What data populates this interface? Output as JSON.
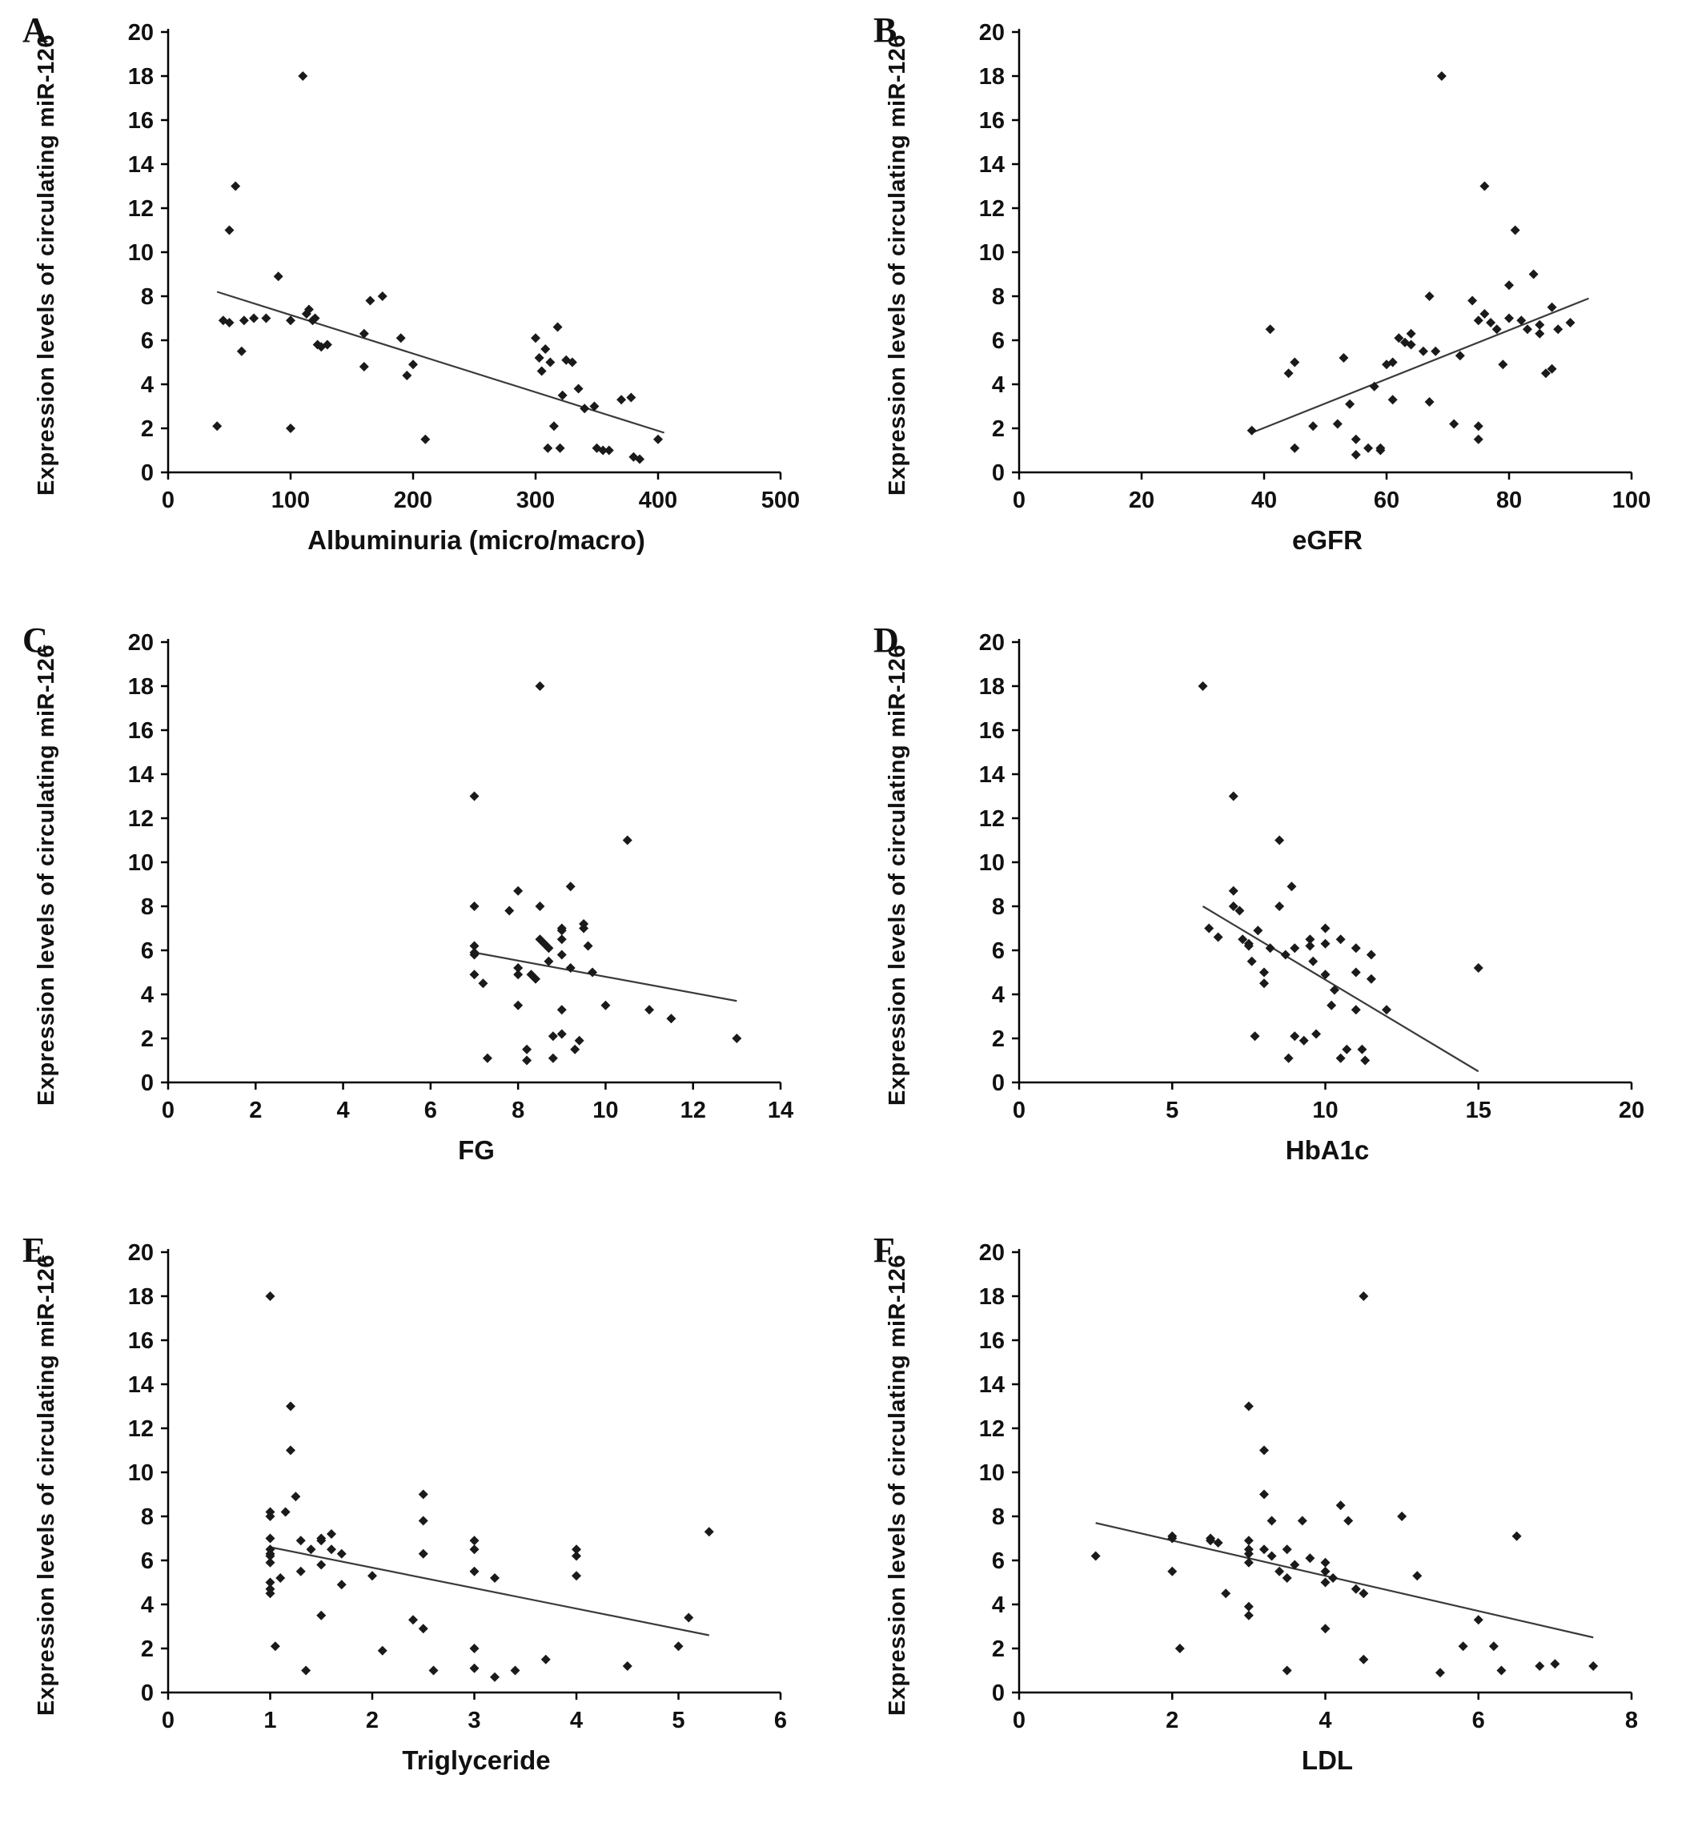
{
  "figure": {
    "background": "#ffffff",
    "point_color": "#1a1a1a",
    "line_color": "#3a3a3a",
    "axis_color": "#000000"
  },
  "chart_data": [
    {
      "type": "scatter",
      "panel": "A",
      "title": "",
      "xlabel": "Albuminuria (micro/macro)",
      "ylabel": "Expression levels of circulating miR-126",
      "xlim": [
        0,
        500
      ],
      "ylim": [
        0,
        20
      ],
      "xticks": [
        0,
        100,
        200,
        300,
        400,
        500
      ],
      "yticks": [
        0,
        2,
        4,
        6,
        8,
        10,
        12,
        14,
        16,
        18,
        20
      ],
      "points": [
        [
          40,
          2.1
        ],
        [
          45,
          6.9
        ],
        [
          50,
          6.8
        ],
        [
          50,
          11
        ],
        [
          55,
          13
        ],
        [
          60,
          5.5
        ],
        [
          62,
          6.9
        ],
        [
          70,
          7
        ],
        [
          80,
          7
        ],
        [
          90,
          8.9
        ],
        [
          100,
          2
        ],
        [
          100,
          6.9
        ],
        [
          110,
          18
        ],
        [
          113,
          7.2
        ],
        [
          115,
          7.4
        ],
        [
          118,
          6.9
        ],
        [
          120,
          7
        ],
        [
          122,
          5.8
        ],
        [
          125,
          5.7
        ],
        [
          130,
          5.8
        ],
        [
          160,
          6.3
        ],
        [
          160,
          4.8
        ],
        [
          165,
          7.8
        ],
        [
          175,
          8
        ],
        [
          190,
          6.1
        ],
        [
          195,
          4.4
        ],
        [
          200,
          4.9
        ],
        [
          210,
          1.5
        ],
        [
          300,
          6.1
        ],
        [
          303,
          5.2
        ],
        [
          305,
          4.6
        ],
        [
          308,
          5.6
        ],
        [
          310,
          1.1
        ],
        [
          312,
          5
        ],
        [
          315,
          2.1
        ],
        [
          318,
          6.6
        ],
        [
          320,
          1.1
        ],
        [
          322,
          3.5
        ],
        [
          325,
          5.1
        ],
        [
          330,
          5
        ],
        [
          335,
          3.8
        ],
        [
          340,
          2.9
        ],
        [
          348,
          3
        ],
        [
          350,
          1.1
        ],
        [
          355,
          1
        ],
        [
          360,
          1
        ],
        [
          370,
          3.3
        ],
        [
          378,
          3.4
        ],
        [
          380,
          0.7
        ],
        [
          385,
          0.6
        ],
        [
          400,
          1.5
        ]
      ],
      "trend": [
        [
          40,
          8.2
        ],
        [
          405,
          1.8
        ]
      ]
    },
    {
      "type": "scatter",
      "panel": "B",
      "title": "",
      "xlabel": "eGFR",
      "ylabel": "Expression levels of circulating miR-126",
      "xlim": [
        0,
        100
      ],
      "ylim": [
        0,
        20
      ],
      "xticks": [
        0,
        20,
        40,
        60,
        80,
        100
      ],
      "yticks": [
        0,
        2,
        4,
        6,
        8,
        10,
        12,
        14,
        16,
        18,
        20
      ],
      "points": [
        [
          38,
          1.9
        ],
        [
          41,
          6.5
        ],
        [
          44,
          4.5
        ],
        [
          45,
          5
        ],
        [
          45,
          1.1
        ],
        [
          48,
          2.1
        ],
        [
          52,
          2.2
        ],
        [
          53,
          5.2
        ],
        [
          54,
          3.1
        ],
        [
          55,
          0.8
        ],
        [
          55,
          1.5
        ],
        [
          57,
          1.1
        ],
        [
          58,
          3.9
        ],
        [
          59,
          1
        ],
        [
          59,
          1.1
        ],
        [
          60,
          4.9
        ],
        [
          61,
          5
        ],
        [
          61,
          3.3
        ],
        [
          62,
          6.1
        ],
        [
          63,
          5.9
        ],
        [
          64,
          5.8
        ],
        [
          64,
          6.3
        ],
        [
          66,
          5.5
        ],
        [
          67,
          8
        ],
        [
          67,
          3.2
        ],
        [
          68,
          5.5
        ],
        [
          69,
          18
        ],
        [
          71,
          2.2
        ],
        [
          72,
          5.3
        ],
        [
          74,
          7.8
        ],
        [
          75,
          6.9
        ],
        [
          75,
          2.1
        ],
        [
          75,
          1.5
        ],
        [
          76,
          13
        ],
        [
          76,
          7.2
        ],
        [
          77,
          6.8
        ],
        [
          78,
          6.5
        ],
        [
          79,
          4.9
        ],
        [
          80,
          8.5
        ],
        [
          80,
          7
        ],
        [
          81,
          11
        ],
        [
          82,
          6.9
        ],
        [
          83,
          6.5
        ],
        [
          84,
          9
        ],
        [
          85,
          6.3
        ],
        [
          85,
          6.7
        ],
        [
          86,
          4.5
        ],
        [
          87,
          4.7
        ],
        [
          87,
          7.5
        ],
        [
          88,
          6.5
        ],
        [
          90,
          6.8
        ]
      ],
      "trend": [
        [
          38,
          1.8
        ],
        [
          93,
          7.9
        ]
      ]
    },
    {
      "type": "scatter",
      "panel": "C",
      "title": "",
      "xlabel": "FG",
      "ylabel": "Expression levels of circulating miR-126",
      "xlim": [
        0,
        14
      ],
      "ylim": [
        0,
        20
      ],
      "xticks": [
        0,
        2,
        4,
        6,
        8,
        10,
        12,
        14
      ],
      "yticks": [
        0,
        2,
        4,
        6,
        8,
        10,
        12,
        14,
        16,
        18,
        20
      ],
      "points": [
        [
          7,
          13
        ],
        [
          7,
          8
        ],
        [
          7,
          6.2
        ],
        [
          7,
          5.9
        ],
        [
          7,
          5.8
        ],
        [
          7,
          4.9
        ],
        [
          7.2,
          4.5
        ],
        [
          7.3,
          1.1
        ],
        [
          7.8,
          7.8
        ],
        [
          8,
          8.7
        ],
        [
          8,
          5.2
        ],
        [
          8,
          4.9
        ],
        [
          8,
          3.5
        ],
        [
          8.2,
          1.5
        ],
        [
          8.2,
          1
        ],
        [
          8.3,
          4.9
        ],
        [
          8.4,
          4.7
        ],
        [
          8.5,
          18
        ],
        [
          8.5,
          8
        ],
        [
          8.5,
          6.5
        ],
        [
          8.6,
          6.3
        ],
        [
          8.7,
          6.1
        ],
        [
          8.7,
          5.5
        ],
        [
          8.8,
          2.1
        ],
        [
          8.8,
          1.1
        ],
        [
          9,
          7
        ],
        [
          9,
          6.9
        ],
        [
          9,
          6.5
        ],
        [
          9,
          5.8
        ],
        [
          9,
          3.3
        ],
        [
          9,
          2.2
        ],
        [
          9.2,
          8.9
        ],
        [
          9.2,
          5.2
        ],
        [
          9.3,
          1.5
        ],
        [
          9.4,
          1.9
        ],
        [
          9.5,
          7
        ],
        [
          9.5,
          7.2
        ],
        [
          9.6,
          6.2
        ],
        [
          9.7,
          5
        ],
        [
          10,
          3.5
        ],
        [
          10.5,
          11
        ],
        [
          11,
          3.3
        ],
        [
          11.5,
          2.9
        ],
        [
          13,
          2
        ]
      ],
      "trend": [
        [
          7,
          5.9
        ],
        [
          13,
          3.7
        ]
      ]
    },
    {
      "type": "scatter",
      "panel": "D",
      "title": "",
      "xlabel": "HbA1c",
      "ylabel": "Expression levels of circulating miR-126",
      "xlim": [
        0,
        20
      ],
      "ylim": [
        0,
        20
      ],
      "xticks": [
        0,
        5,
        10,
        15,
        20
      ],
      "yticks": [
        0,
        2,
        4,
        6,
        8,
        10,
        12,
        14,
        16,
        18,
        20
      ],
      "points": [
        [
          6,
          18
        ],
        [
          6.2,
          7
        ],
        [
          6.5,
          6.6
        ],
        [
          7,
          13
        ],
        [
          7,
          8.7
        ],
        [
          7,
          8
        ],
        [
          7.2,
          7.8
        ],
        [
          7.3,
          6.5
        ],
        [
          7.5,
          6.3
        ],
        [
          7.5,
          6.2
        ],
        [
          7.6,
          5.5
        ],
        [
          7.7,
          2.1
        ],
        [
          7.8,
          6.9
        ],
        [
          8,
          5
        ],
        [
          8,
          4.5
        ],
        [
          8.2,
          6.1
        ],
        [
          8.5,
          11
        ],
        [
          8.5,
          8
        ],
        [
          8.7,
          5.8
        ],
        [
          8.8,
          1.1
        ],
        [
          8.9,
          8.9
        ],
        [
          9,
          6.1
        ],
        [
          9,
          2.1
        ],
        [
          9.3,
          1.9
        ],
        [
          9.5,
          6.5
        ],
        [
          9.5,
          6.2
        ],
        [
          9.6,
          5.5
        ],
        [
          9.7,
          2.2
        ],
        [
          10,
          7
        ],
        [
          10,
          6.3
        ],
        [
          10,
          4.9
        ],
        [
          10.2,
          3.5
        ],
        [
          10.3,
          4.2
        ],
        [
          10.5,
          6.5
        ],
        [
          10.5,
          1.1
        ],
        [
          10.7,
          1.5
        ],
        [
          11,
          6.1
        ],
        [
          11,
          5
        ],
        [
          11,
          3.3
        ],
        [
          11.2,
          1.5
        ],
        [
          11.3,
          1
        ],
        [
          11.5,
          5.8
        ],
        [
          11.5,
          4.7
        ],
        [
          12,
          3.3
        ],
        [
          15,
          5.2
        ]
      ],
      "trend": [
        [
          6,
          8
        ],
        [
          15,
          0.5
        ]
      ]
    },
    {
      "type": "scatter",
      "panel": "E",
      "title": "",
      "xlabel": "Triglyceride",
      "ylabel": "Expression levels of circulating miR-126",
      "xlim": [
        0,
        6
      ],
      "ylim": [
        0,
        20
      ],
      "xticks": [
        0,
        1,
        2,
        3,
        4,
        5,
        6
      ],
      "yticks": [
        0,
        2,
        4,
        6,
        8,
        10,
        12,
        14,
        16,
        18,
        20
      ],
      "points": [
        [
          1,
          18
        ],
        [
          1,
          8.2
        ],
        [
          1,
          8
        ],
        [
          1,
          7
        ],
        [
          1,
          6.5
        ],
        [
          1,
          6.3
        ],
        [
          1,
          6.2
        ],
        [
          1,
          5.9
        ],
        [
          1,
          5
        ],
        [
          1,
          4.7
        ],
        [
          1,
          4.5
        ],
        [
          1.05,
          2.1
        ],
        [
          1.1,
          5.2
        ],
        [
          1.15,
          8.2
        ],
        [
          1.2,
          13
        ],
        [
          1.2,
          11
        ],
        [
          1.25,
          8.9
        ],
        [
          1.3,
          6.9
        ],
        [
          1.3,
          5.5
        ],
        [
          1.35,
          1
        ],
        [
          1.4,
          6.5
        ],
        [
          1.5,
          7
        ],
        [
          1.5,
          6.9
        ],
        [
          1.5,
          5.8
        ],
        [
          1.5,
          3.5
        ],
        [
          1.6,
          7.2
        ],
        [
          1.6,
          6.5
        ],
        [
          1.7,
          6.3
        ],
        [
          1.7,
          4.9
        ],
        [
          2,
          5.3
        ],
        [
          2.1,
          1.9
        ],
        [
          2.4,
          3.3
        ],
        [
          2.5,
          9
        ],
        [
          2.5,
          7.8
        ],
        [
          2.5,
          6.3
        ],
        [
          2.5,
          2.9
        ],
        [
          2.6,
          1
        ],
        [
          3,
          6.9
        ],
        [
          3,
          6.5
        ],
        [
          3,
          5.5
        ],
        [
          3,
          2
        ],
        [
          3,
          1.1
        ],
        [
          3.2,
          5.2
        ],
        [
          3.2,
          0.7
        ],
        [
          3.4,
          1
        ],
        [
          3.7,
          1.5
        ],
        [
          4,
          6.5
        ],
        [
          4,
          6.2
        ],
        [
          4,
          5.3
        ],
        [
          4.5,
          1.2
        ],
        [
          5,
          2.1
        ],
        [
          5.1,
          3.4
        ],
        [
          5.3,
          7.3
        ]
      ],
      "trend": [
        [
          1,
          6.6
        ],
        [
          5.3,
          2.6
        ]
      ]
    },
    {
      "type": "scatter",
      "panel": "F",
      "title": "",
      "xlabel": "LDL",
      "ylabel": "Expression levels of circulating miR-126",
      "xlim": [
        0,
        8
      ],
      "ylim": [
        0,
        20
      ],
      "xticks": [
        0,
        2,
        4,
        6,
        8
      ],
      "yticks": [
        0,
        2,
        4,
        6,
        8,
        10,
        12,
        14,
        16,
        18,
        20
      ],
      "points": [
        [
          1,
          6.2
        ],
        [
          2,
          7.1
        ],
        [
          2,
          7
        ],
        [
          2,
          5.5
        ],
        [
          2.1,
          2
        ],
        [
          2.5,
          7
        ],
        [
          2.5,
          6.9
        ],
        [
          2.6,
          6.8
        ],
        [
          2.7,
          4.5
        ],
        [
          3,
          13
        ],
        [
          3,
          6.9
        ],
        [
          3,
          6.5
        ],
        [
          3,
          6.3
        ],
        [
          3,
          5.9
        ],
        [
          3,
          3.9
        ],
        [
          3,
          3.5
        ],
        [
          3.2,
          11
        ],
        [
          3.2,
          9
        ],
        [
          3.2,
          6.5
        ],
        [
          3.3,
          7.8
        ],
        [
          3.3,
          6.2
        ],
        [
          3.4,
          5.5
        ],
        [
          3.5,
          6.5
        ],
        [
          3.5,
          5.2
        ],
        [
          3.5,
          1
        ],
        [
          3.6,
          5.8
        ],
        [
          3.7,
          7.8
        ],
        [
          3.8,
          6.1
        ],
        [
          4,
          5.9
        ],
        [
          4,
          5.5
        ],
        [
          4,
          5
        ],
        [
          4,
          2.9
        ],
        [
          4.1,
          5.2
        ],
        [
          4.2,
          8.5
        ],
        [
          4.3,
          7.8
        ],
        [
          4.4,
          4.7
        ],
        [
          4.5,
          18
        ],
        [
          4.5,
          4.5
        ],
        [
          4.5,
          1.5
        ],
        [
          5,
          8
        ],
        [
          5.2,
          5.3
        ],
        [
          5.5,
          0.9
        ],
        [
          5.8,
          2.1
        ],
        [
          6,
          3.3
        ],
        [
          6.2,
          2.1
        ],
        [
          6.3,
          1
        ],
        [
          6.5,
          7.1
        ],
        [
          6.8,
          1.2
        ],
        [
          7,
          1.3
        ],
        [
          7.5,
          1.2
        ]
      ],
      "trend": [
        [
          1,
          7.7
        ],
        [
          7.5,
          2.5
        ]
      ]
    }
  ]
}
